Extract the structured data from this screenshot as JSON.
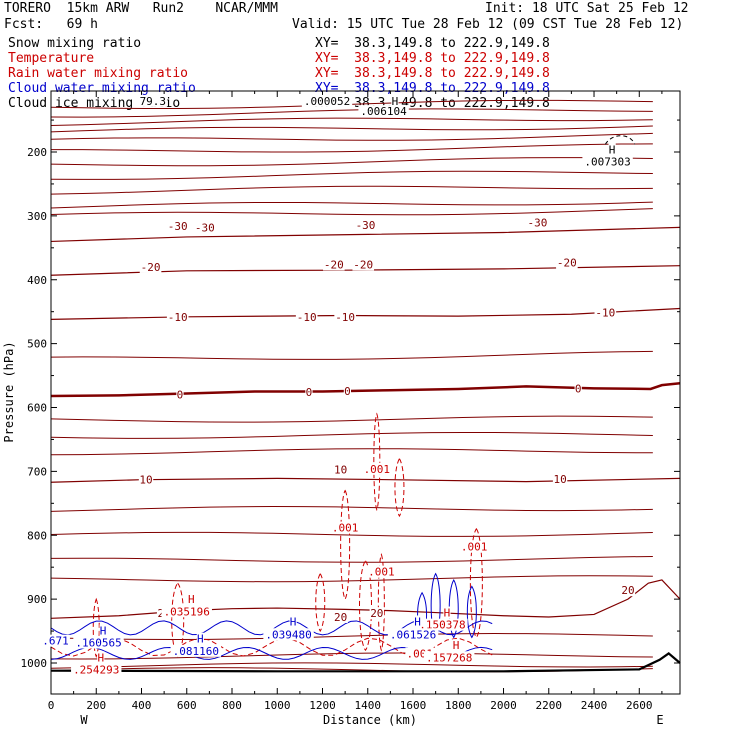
{
  "header": {
    "left1": "TORERO  15km ARW   Run2    NCAR/MMM",
    "init": "Init: 18 UTC Sat 25 Feb 12",
    "fcst": "Fcst:   69 h",
    "valid": "Valid: 15 UTC Tue 28 Feb 12 (09 CST Tue 28 Feb 12)",
    "xy": "XY=  38.3,149.8 to 222.9,149.8"
  },
  "fields": [
    {
      "name": "Snow mixing ratio",
      "color": "#000000"
    },
    {
      "name": "Temperature",
      "color": "#cc0000"
    },
    {
      "name": "Rain water mixing ratio",
      "color": "#cc0000"
    },
    {
      "name": "Cloud water mixing ratio",
      "color": "#0000cc"
    },
    {
      "name": "Cloud ice mixing ratio",
      "color": "#000000"
    }
  ],
  "chart_data": {
    "type": "line",
    "xlabel": "Distance (km)",
    "ylabel": "Pressure (hPa)",
    "xlim": [
      0,
      2780
    ],
    "ylim": [
      1050,
      100
    ],
    "xticks": [
      0,
      200,
      400,
      600,
      800,
      1000,
      1200,
      1400,
      1600,
      1800,
      2000,
      2200,
      2400,
      2600
    ],
    "yticks": [
      200,
      300,
      400,
      500,
      600,
      700,
      800,
      900,
      1000
    ],
    "west_label": "W",
    "east_label": "E",
    "temperature_contours": [
      {
        "label": "0",
        "points": [
          [
            0,
            582
          ],
          [
            300,
            581
          ],
          [
            600,
            578
          ],
          [
            900,
            575
          ],
          [
            1200,
            575
          ],
          [
            1500,
            573
          ],
          [
            1800,
            571
          ],
          [
            2100,
            567
          ],
          [
            2400,
            570
          ],
          [
            2650,
            571
          ],
          [
            2700,
            565
          ],
          [
            2780,
            562
          ]
        ]
      },
      {
        "label": "-10",
        "points": [
          [
            0,
            462
          ],
          [
            600,
            458
          ],
          [
            1300,
            456
          ],
          [
            1800,
            457
          ],
          [
            2300,
            454
          ],
          [
            2780,
            445
          ]
        ]
      },
      {
        "label": "-20",
        "points": [
          [
            0,
            393
          ],
          [
            600,
            386
          ],
          [
            1300,
            385
          ],
          [
            2000,
            383
          ],
          [
            2780,
            378
          ]
        ]
      },
      {
        "label": "-30",
        "points": [
          [
            0,
            340
          ],
          [
            600,
            333
          ],
          [
            1400,
            329
          ],
          [
            2000,
            326
          ],
          [
            2780,
            318
          ]
        ]
      },
      {
        "label": "10",
        "points": [
          [
            0,
            717
          ],
          [
            400,
            713
          ],
          [
            1000,
            711
          ],
          [
            1500,
            713
          ],
          [
            2100,
            716
          ],
          [
            2780,
            711
          ]
        ]
      },
      {
        "label": "20",
        "points": [
          [
            0,
            930
          ],
          [
            300,
            926
          ],
          [
            600,
            918
          ],
          [
            800,
            915
          ],
          [
            1000,
            914
          ],
          [
            1300,
            916
          ],
          [
            1500,
            918
          ],
          [
            1700,
            921
          ],
          [
            2000,
            926
          ],
          [
            2200,
            928
          ],
          [
            2400,
            924
          ],
          [
            2550,
            900
          ],
          [
            2640,
            875
          ],
          [
            2700,
            870
          ],
          [
            2780,
            900
          ]
        ]
      }
    ],
    "temperature_isotherm_levels": [
      130,
      142,
      155,
      168,
      183,
      200,
      220,
      240,
      262,
      286,
      300,
      525,
      620,
      645,
      670,
      760,
      800,
      840,
      870,
      960,
      990,
      1005,
      1012
    ],
    "labels": [
      {
        "text": "-30",
        "x": 560,
        "p": 316
      },
      {
        "text": "-30",
        "x": 680,
        "p": 318
      },
      {
        "text": "-30",
        "x": 1390,
        "p": 314
      },
      {
        "text": "-30",
        "x": 2150,
        "p": 310
      },
      {
        "text": "-20",
        "x": 440,
        "p": 380
      },
      {
        "text": "-20",
        "x": 1250,
        "p": 376
      },
      {
        "text": "-20",
        "x": 1380,
        "p": 376
      },
      {
        "text": "-20",
        "x": 2280,
        "p": 373
      },
      {
        "text": "-10",
        "x": 560,
        "p": 458
      },
      {
        "text": "-10",
        "x": 1130,
        "p": 458
      },
      {
        "text": "-10",
        "x": 1300,
        "p": 458
      },
      {
        "text": "-10",
        "x": 2450,
        "p": 451
      },
      {
        "text": "0",
        "x": 570,
        "p": 580
      },
      {
        "text": "0",
        "x": 1140,
        "p": 576
      },
      {
        "text": "0",
        "x": 1310,
        "p": 574
      },
      {
        "text": "0",
        "x": 2330,
        "p": 570
      },
      {
        "text": "10",
        "x": 420,
        "p": 713
      },
      {
        "text": "10",
        "x": 1280,
        "p": 697
      },
      {
        "text": "10",
        "x": 2250,
        "p": 712
      },
      {
        "text": "20",
        "x": 500,
        "p": 922
      },
      {
        "text": "20",
        "x": 1280,
        "p": 928
      },
      {
        "text": "20",
        "x": 1440,
        "p": 922
      },
      {
        "text": "20",
        "x": 2550,
        "p": 886
      }
    ],
    "rain_values": [
      {
        "text": ".001",
        "x": 1440,
        "p": 696
      },
      {
        "text": ".001",
        "x": 1300,
        "p": 788
      },
      {
        "text": ".001",
        "x": 1870,
        "p": 818
      },
      {
        "text": ".001",
        "x": 1460,
        "p": 857
      },
      {
        "text": ".001",
        "x": 1630,
        "p": 985
      },
      {
        "text": "H",
        "x": 620,
        "p": 900
      },
      {
        "text": ".035196",
        "x": 600,
        "p": 919
      },
      {
        "text": "H",
        "x": 220,
        "p": 991
      },
      {
        "text": ".254293",
        "x": 200,
        "p": 1010
      },
      {
        "text": "H",
        "x": 1750,
        "p": 921
      },
      {
        "text": ".150378",
        "x": 1730,
        "p": 940
      },
      {
        "text": "H",
        "x": 1790,
        "p": 972
      },
      {
        "text": ".157268",
        "x": 1760,
        "p": 991
      }
    ],
    "cloud_water_values": [
      {
        "text": "H",
        "x": 230,
        "p": 949
      },
      {
        "text": ".160565",
        "x": 210,
        "p": 968
      },
      {
        "text": "H",
        "x": 660,
        "p": 962
      },
      {
        "text": ".081160",
        "x": 640,
        "p": 981
      },
      {
        "text": "H",
        "x": 1070,
        "p": 935
      },
      {
        "text": ".039480",
        "x": 1050,
        "p": 955
      },
      {
        "text": "H",
        "x": 1620,
        "p": 935
      },
      {
        "text": ".061526",
        "x": 1600,
        "p": 955
      },
      {
        "text": ".671",
        "x": 20,
        "p": 965
      }
    ],
    "ice_values": [
      {
        "text": ".000052",
        "x": 1220,
        "p": 120
      },
      {
        "text": ".006104",
        "x": 1470,
        "p": 136
      },
      {
        "text": "H",
        "x": 2480,
        "p": 196
      },
      {
        "text": ".007303",
        "x": 2460,
        "p": 215
      },
      {
        "text": "H",
        "x": 1520,
        "p": 120
      },
      {
        "text": "79.3",
        "x": 450,
        "p": 120
      }
    ]
  }
}
